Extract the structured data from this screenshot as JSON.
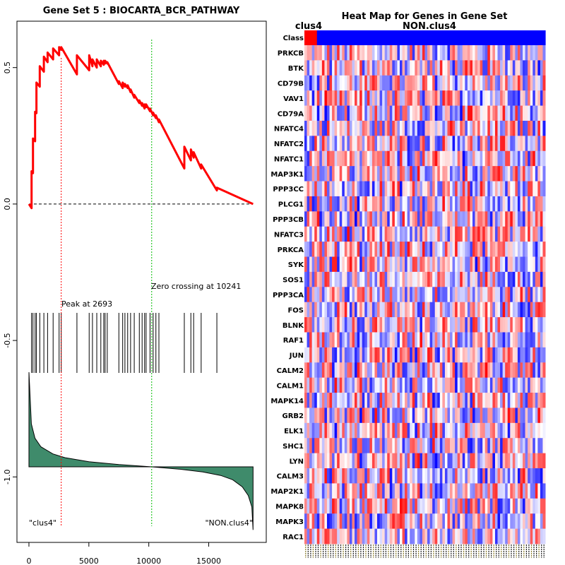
{
  "chart_data": [
    {
      "type": "line",
      "title": "Gene Set  5 : BIOCARTA_BCR_PATHWAY",
      "xlim": [
        -1000,
        19800
      ],
      "ylim": [
        -1.24,
        0.67
      ],
      "x_ticks": [
        0,
        5000,
        10000,
        15000
      ],
      "y_ticks": [
        0.5,
        0.0,
        -0.5,
        -1.0
      ],
      "x_tick_labels": [
        "0",
        "5000",
        "10000",
        "15000"
      ],
      "y_tick_labels": [
        "0.5",
        "0.0",
        "-0.5",
        "-1.0"
      ],
      "baseline": 0.0,
      "peak": {
        "x": 2693,
        "label": "Peak at 2693"
      },
      "zero_crossing": {
        "x": 10241,
        "label": "Zero crossing at 10241"
      },
      "left_label": "\"clus4\"",
      "right_label": "\"NON.clus4\"",
      "hits": [
        219,
        338,
        517,
        625,
        905,
        1246,
        1556,
        2018,
        2516,
        2693,
        4004,
        5025,
        5300,
        5660,
        5999,
        6242,
        6355,
        6535,
        7503,
        7820,
        8009,
        8237,
        8480,
        8786,
        9210,
        9442,
        9649,
        9775,
        10103,
        10362,
        10593,
        10844,
        12963,
        13510,
        13741,
        14369,
        15679
      ],
      "running_es": {
        "x": [
          0,
          219,
          219,
          338,
          338,
          517,
          517,
          625,
          625,
          905,
          905,
          1246,
          1246,
          1556,
          1556,
          2018,
          2018,
          2516,
          2516,
          2693,
          2693,
          4004,
          4004,
          5025,
          5025,
          5300,
          5300,
          5660,
          5660,
          5999,
          5999,
          6242,
          6242,
          6355,
          6355,
          6535,
          6535,
          7503,
          7503,
          7820,
          7820,
          8009,
          8009,
          8237,
          8237,
          8480,
          8480,
          8786,
          8786,
          9210,
          9210,
          9442,
          9442,
          9649,
          9649,
          9775,
          9775,
          10103,
          10103,
          10362,
          10362,
          10593,
          10593,
          10844,
          10844,
          12963,
          12963,
          13510,
          13510,
          13741,
          13741,
          14369,
          14369,
          15679,
          15679,
          18700
        ],
        "y": [
          0.0,
          -0.015,
          0.12,
          0.113,
          0.24,
          0.23,
          0.338,
          0.333,
          0.445,
          0.43,
          0.505,
          0.485,
          0.54,
          0.52,
          0.555,
          0.53,
          0.57,
          0.545,
          0.575,
          0.565,
          0.575,
          0.475,
          0.545,
          0.49,
          0.545,
          0.505,
          0.53,
          0.5,
          0.53,
          0.505,
          0.525,
          0.51,
          0.525,
          0.515,
          0.525,
          0.515,
          0.52,
          0.44,
          0.45,
          0.425,
          0.445,
          0.43,
          0.44,
          0.425,
          0.435,
          0.41,
          0.42,
          0.39,
          0.4,
          0.37,
          0.38,
          0.36,
          0.37,
          0.35,
          0.365,
          0.355,
          0.365,
          0.34,
          0.35,
          0.325,
          0.335,
          0.315,
          0.325,
          0.3,
          0.31,
          0.13,
          0.21,
          0.16,
          0.2,
          0.17,
          0.19,
          0.13,
          0.145,
          0.05,
          0.06,
          0.0
        ]
      },
      "ranked_metric": {
        "x": [
          0,
          200,
          500,
          1000,
          2000,
          3000,
          5000,
          7500,
          10241,
          12500,
          14500,
          16000,
          17000,
          17800,
          18300,
          18600,
          18700
        ],
        "value": [
          0.33,
          0.15,
          0.1,
          0.07,
          0.045,
          0.032,
          0.018,
          0.008,
          0.0,
          -0.008,
          -0.018,
          -0.03,
          -0.045,
          -0.07,
          -0.1,
          -0.14,
          -0.22
        ]
      }
    },
    {
      "type": "heatmap",
      "title": "Heat Map for Genes in Gene Set",
      "class_row_label": "Class",
      "groups": [
        {
          "name": "clus4",
          "samples": 5,
          "color": "#ff0000"
        },
        {
          "name": "NON.clus4",
          "samples": 91,
          "color": "#0000ff"
        }
      ],
      "genes": [
        "PRKCB",
        "BTK",
        "CD79B",
        "VAV1",
        "CD79A",
        "NFATC4",
        "NFATC2",
        "NFATC1",
        "MAP3K1",
        "PPP3CC",
        "PLCG1",
        "PPP3CB",
        "NFATC3",
        "PRKCA",
        "SYK",
        "SOS1",
        "PPP3CA",
        "FOS",
        "BLNK",
        "RAF1",
        "JUN",
        "CALM2",
        "CALM1",
        "MAPK14",
        "GRB2",
        "ELK1",
        "SHC1",
        "LYN",
        "CALM3",
        "MAP2K1",
        "MAPK8",
        "MAPK3",
        "RAC1"
      ],
      "color_scale": {
        "low": "#0000ff",
        "mid": "#ffffff",
        "high": "#ff0000"
      },
      "values_note": "per-cell expression values are not legible in the image"
    }
  ]
}
